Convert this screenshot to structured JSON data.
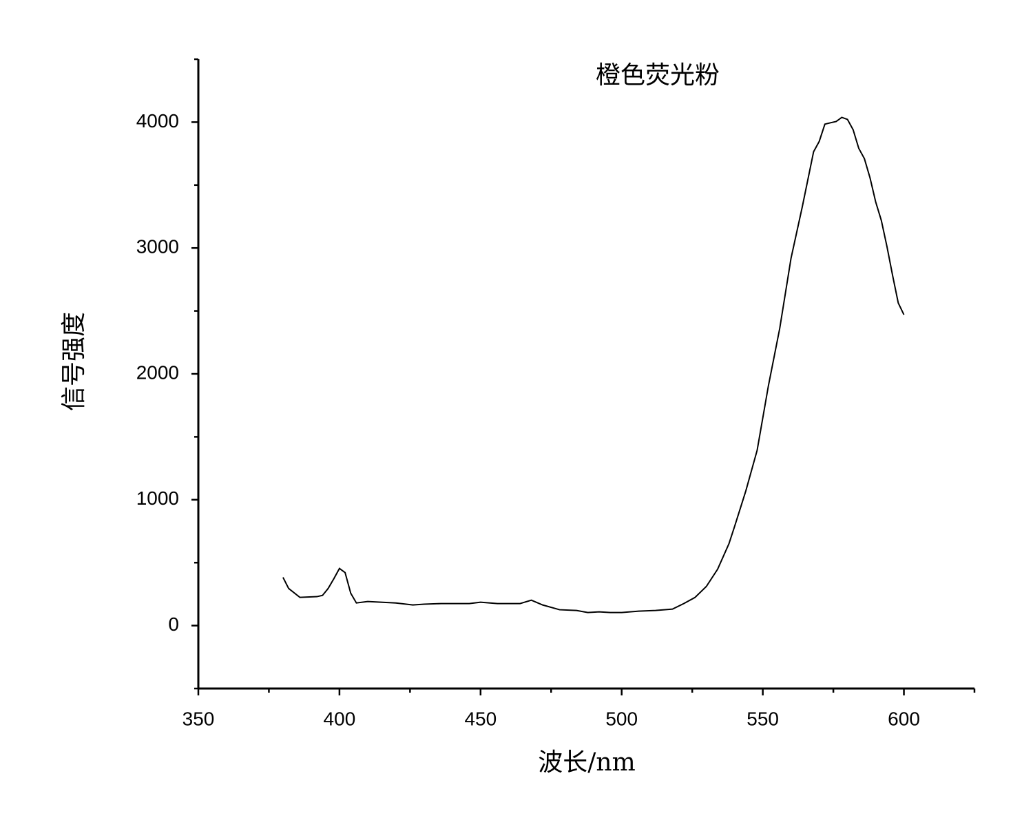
{
  "chart_data": {
    "type": "line",
    "title": "橙色荧光粉",
    "x_label": "波长/nm",
    "y_label": "信号强度",
    "x": [
      380,
      382,
      386,
      392,
      394,
      396,
      398,
      400,
      402,
      404,
      406,
      410,
      420,
      426,
      430,
      436,
      446,
      450,
      456,
      464,
      468,
      472,
      478,
      484,
      488,
      492,
      496,
      500,
      506,
      512,
      518,
      522,
      526,
      530,
      534,
      538,
      540,
      544,
      548,
      552,
      556,
      560,
      564,
      568,
      570,
      572,
      574,
      576,
      578,
      580,
      582,
      584,
      586,
      588,
      590,
      592,
      594,
      596,
      598,
      600
    ],
    "series": [
      {
        "name": "橙色荧光粉",
        "color": "#000000",
        "values": [
          383,
          295,
          224,
          230,
          240,
          295,
          372,
          454,
          421,
          257,
          180,
          191,
          180,
          164,
          170,
          175,
          175,
          186,
          175,
          175,
          202,
          164,
          126,
          120,
          104,
          109,
          104,
          104,
          115,
          120,
          131,
          175,
          224,
          311,
          448,
          650,
          787,
          1071,
          1393,
          1907,
          2361,
          2918,
          3328,
          3765,
          3847,
          3984,
          3995,
          4005,
          4038,
          4022,
          3940,
          3792,
          3710,
          3557,
          3366,
          3219,
          3011,
          2781,
          2563,
          2470
        ]
      }
    ],
    "xlim": [
      350,
      625
    ],
    "xticks": [
      350,
      400,
      450,
      500,
      550,
      600
    ],
    "ylim": [
      -500,
      4500
    ],
    "yticks": [
      0,
      1000,
      2000,
      3000,
      4000
    ],
    "grid": false
  }
}
